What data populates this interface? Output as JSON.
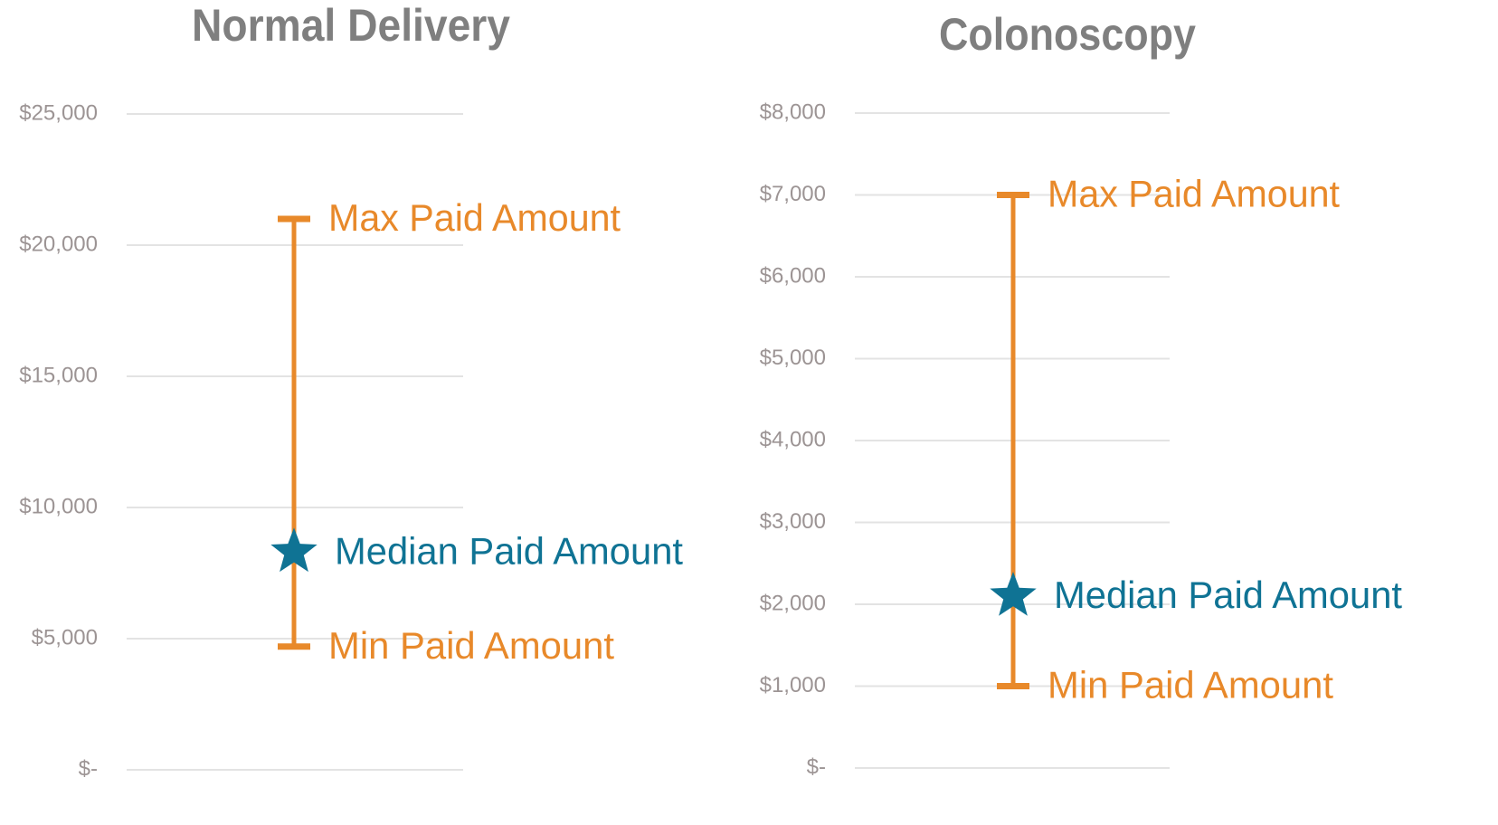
{
  "chart_data": [
    {
      "type": "range",
      "title": "Normal Delivery",
      "ylim": [
        0,
        25000
      ],
      "yticks": [
        {
          "value": 0,
          "label": "$-"
        },
        {
          "value": 5000,
          "label": "$5,000"
        },
        {
          "value": 10000,
          "label": "$10,000"
        },
        {
          "value": 15000,
          "label": "$15,000"
        },
        {
          "value": 20000,
          "label": "$20,000"
        },
        {
          "value": 25000,
          "label": "$25,000"
        }
      ],
      "grid": true,
      "series": [
        {
          "name": "Max Paid Amount",
          "color": "#e8892a",
          "values": [
            21000
          ]
        },
        {
          "name": "Median Paid Amount",
          "color": "#0f7394",
          "values": [
            8300
          ]
        },
        {
          "name": "Min Paid Amount",
          "color": "#e8892a",
          "values": [
            4700
          ]
        }
      ]
    },
    {
      "type": "range",
      "title": "Colonoscopy",
      "ylim": [
        0,
        8000
      ],
      "yticks": [
        {
          "value": 0,
          "label": "$-"
        },
        {
          "value": 1000,
          "label": "$1,000"
        },
        {
          "value": 2000,
          "label": "$2,000"
        },
        {
          "value": 3000,
          "label": "$3,000"
        },
        {
          "value": 4000,
          "label": "$4,000"
        },
        {
          "value": 5000,
          "label": "$5,000"
        },
        {
          "value": 6000,
          "label": "$6,000"
        },
        {
          "value": 7000,
          "label": "$7,000"
        },
        {
          "value": 8000,
          "label": "$8,000"
        }
      ],
      "grid": true,
      "series": [
        {
          "name": "Max Paid Amount",
          "color": "#e8892a",
          "values": [
            7000
          ]
        },
        {
          "name": "Median Paid Amount",
          "color": "#0f7394",
          "values": [
            2100
          ]
        },
        {
          "name": "Min Paid Amount",
          "color": "#e8892a",
          "values": [
            1000
          ]
        }
      ]
    }
  ]
}
